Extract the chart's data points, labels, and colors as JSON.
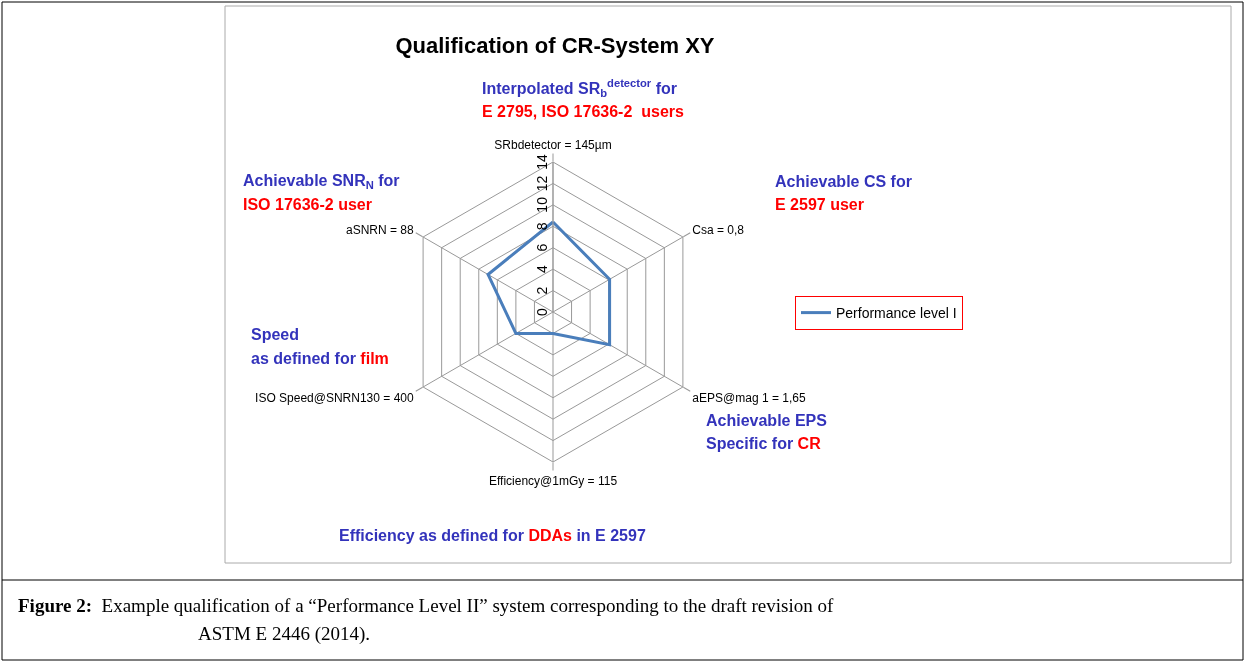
{
  "chart_data": {
    "type": "radar",
    "title": "Qualification of CR-System XY",
    "categories": [
      "SRbdetector = 145µm",
      "Csa = 0,8",
      "aEPS@mag 1 = 1,65",
      "Efficiency@1mGy = 115",
      "ISO Speed@SNRN130 = 400",
      "aSNRN = 88"
    ],
    "series": [
      {
        "name": "Performance level I",
        "color": "#4a7ebb",
        "values": [
          8.4,
          6.1,
          6.1,
          2,
          4,
          7
        ]
      }
    ],
    "ylim": [
      0,
      14
    ],
    "yticks": [
      0,
      2,
      4,
      6,
      8,
      10,
      12,
      14
    ],
    "grid": true,
    "legend": "right",
    "marker": "none",
    "line_style": "solid",
    "annotations": [
      "Interpolated SR$_{b}$$^{detector}$ for",
      "E 2795, ISO 17636-2  users",
      "Achievable CS for",
      "E 2597 user",
      "Achievable EPS",
      "Specific for",
      "CR",
      "Efficiency as defined for",
      "DDAs",
      "in E 2597",
      "Speed",
      "as defined for",
      "film",
      "Achievable SNR$_{N}$ for",
      "ISO 17636-2 user",
      "Figure 2:",
      "Example qualification of a “Performance Level II” system corresponding to the draft revision of",
      "ASTM E 2446 (2014)."
    ]
  }
}
